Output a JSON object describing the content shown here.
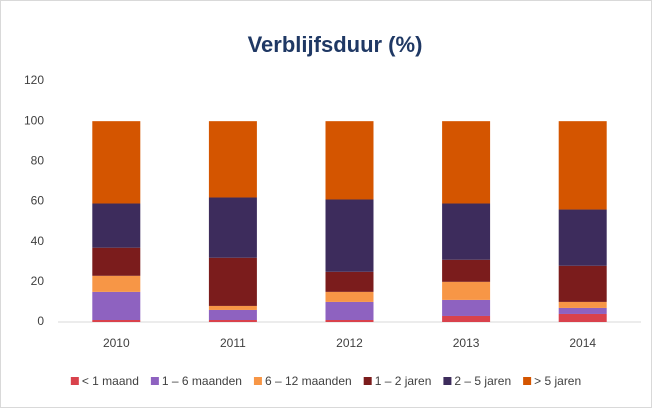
{
  "chart_data": {
    "type": "stacked_bar",
    "title": "Verblijfsduur  (%)",
    "categories": [
      "2010",
      "2011",
      "2012",
      "2013",
      "2014"
    ],
    "series": [
      {
        "name": "< 1 maand",
        "color": "#d9424c",
        "values": [
          1,
          1,
          1,
          3,
          4
        ]
      },
      {
        "name": "1 – 6 maanden",
        "color": "#8e62c0",
        "values": [
          14,
          5,
          9,
          8,
          3
        ]
      },
      {
        "name": "6 – 12 maanden",
        "color": "#f79646",
        "values": [
          8,
          2,
          5,
          9,
          3
        ]
      },
      {
        "name": "1 – 2 jaren",
        "color": "#7b1c1c",
        "values": [
          14,
          24,
          10,
          11,
          18
        ]
      },
      {
        "name": "2 – 5 jaren",
        "color": "#3d2c5c",
        "values": [
          22,
          30,
          36,
          28,
          28
        ]
      },
      {
        "name": "> 5 jaren",
        "color": "#d45500",
        "values": [
          41,
          38,
          39,
          41,
          44
        ]
      }
    ],
    "ylim": [
      0,
      120
    ],
    "yticks": [
      0,
      20,
      40,
      60,
      80,
      100,
      120
    ],
    "grid": false,
    "legend": "bottom"
  }
}
